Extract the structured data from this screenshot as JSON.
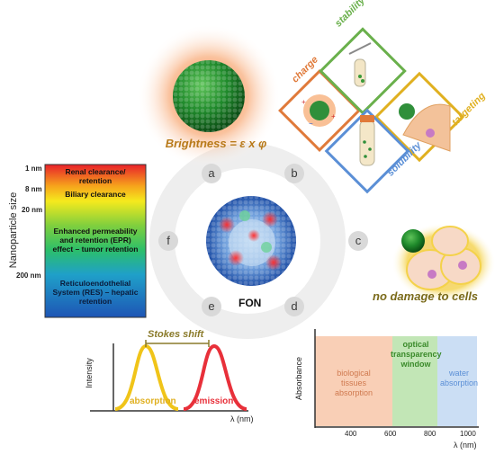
{
  "panel_labels": {
    "a": "a",
    "b": "b",
    "c": "c",
    "d": "d",
    "e": "e",
    "f": "f"
  },
  "brightness": {
    "label": "Brightness = ε x φ"
  },
  "properties": {
    "charge": "charge",
    "stability": "stability",
    "solubility": "solubility",
    "targeting": "targeting",
    "charge_color": "#e07a3a",
    "stability_color": "#6ab04c",
    "solubility_color": "#5b8fd6",
    "targeting_color": "#e0b020"
  },
  "center": {
    "label": "FON"
  },
  "cells": {
    "caption": "no damage to cells"
  },
  "size_scale": {
    "axis_title": "Nanoparticle size",
    "ticks": [
      "1 nm",
      "8 nm",
      "20 nm",
      "200 nm"
    ],
    "regions": [
      "Renal clearance/ retention",
      "Biliary clearance",
      "Enhanced permeability and retention (EPR) effect – tumor retention",
      "Reticuloendothelial System (RES) – hepatic retention"
    ]
  },
  "stokes": {
    "title": "Stokes shift",
    "ylabel": "Intensity",
    "xlabel": "λ (nm)",
    "absorption": "absorption",
    "emission": "emission",
    "absorption_color": "#f0c419",
    "emission_color": "#e8303a"
  },
  "window": {
    "ylabel": "Absorbance",
    "xlabel": "λ (nm)",
    "xticks": [
      "400",
      "600",
      "800",
      "1000"
    ],
    "region_bio": "biological tissues absorption",
    "region_optical": "optical transparency window",
    "region_water": "water absorption",
    "bio_color": "#f4a77a",
    "optical_color": "#8fd17a",
    "water_color": "#a9c8ec"
  }
}
